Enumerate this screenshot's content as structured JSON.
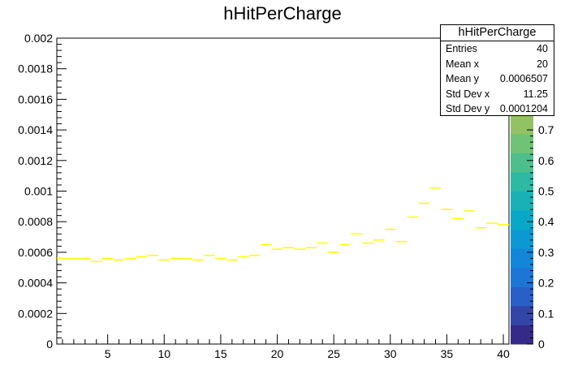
{
  "chart_data": {
    "type": "heatmap",
    "title": "hHitPerCharge",
    "xlim": [
      0.5,
      40.5
    ],
    "ylim": [
      0,
      0.002
    ],
    "x_ticks": [
      5,
      10,
      15,
      20,
      25,
      30,
      35,
      40
    ],
    "y_ticks": [
      "0",
      "0.0002",
      "0.0004",
      "0.0006",
      "0.0008",
      "0.001",
      "0.0012",
      "0.0014",
      "0.0016",
      "0.0018",
      "0.002"
    ],
    "y_tick_values": [
      0,
      0.0002,
      0.0004,
      0.0006,
      0.0008,
      0.001,
      0.0012,
      0.0014,
      0.0016,
      0.0018,
      0.002
    ],
    "grid": false,
    "bins": {
      "x": [
        1,
        2,
        3,
        4,
        5,
        6,
        7,
        8,
        9,
        10,
        11,
        12,
        13,
        14,
        15,
        16,
        17,
        18,
        19,
        20,
        21,
        22,
        23,
        24,
        25,
        26,
        27,
        28,
        29,
        30,
        31,
        32,
        33,
        34,
        35,
        36,
        37,
        38,
        39,
        40
      ],
      "y": [
        0.00056,
        0.00056,
        0.00056,
        0.00054,
        0.00056,
        0.00055,
        0.00056,
        0.00057,
        0.00058,
        0.00055,
        0.00056,
        0.00056,
        0.00055,
        0.00058,
        0.00056,
        0.00055,
        0.00057,
        0.00058,
        0.00065,
        0.00062,
        0.00063,
        0.00062,
        0.00063,
        0.00066,
        0.0006,
        0.00065,
        0.00072,
        0.00066,
        0.00068,
        0.00075,
        0.00067,
        0.00083,
        0.00092,
        0.00102,
        0.00088,
        0.00082,
        0.00087,
        0.00076,
        0.00079,
        0.00078
      ],
      "color": "#ffff00"
    },
    "colorbar": {
      "range": [
        0,
        1
      ],
      "visible_ticks": [
        "0",
        "0.1",
        "0.2",
        "0.3",
        "0.4",
        "0.5",
        "0.6",
        "0.7"
      ],
      "tick_values": [
        0,
        0.1,
        0.2,
        0.3,
        0.4,
        0.5,
        0.6,
        0.7
      ],
      "palette": [
        "#352a87",
        "#3445a8",
        "#2a5fc8",
        "#1d76d6",
        "#1287d9",
        "#0c98d3",
        "#09a8c8",
        "#17b1b6",
        "#2db9a3",
        "#4cbf8d",
        "#6fc276",
        "#92c264",
        "#b3be57",
        "#cdb94d",
        "#e3b744",
        "#f5c03a"
      ]
    },
    "stats": {
      "title": "hHitPerCharge",
      "rows": [
        {
          "label": "Entries",
          "value": "40"
        },
        {
          "label": "Mean x",
          "value": "20"
        },
        {
          "label": "Mean y",
          "value": "0.0006507"
        },
        {
          "label": "Std Dev x",
          "value": "11.25"
        },
        {
          "label": "Std Dev y",
          "value": "0.0001204"
        }
      ]
    }
  }
}
